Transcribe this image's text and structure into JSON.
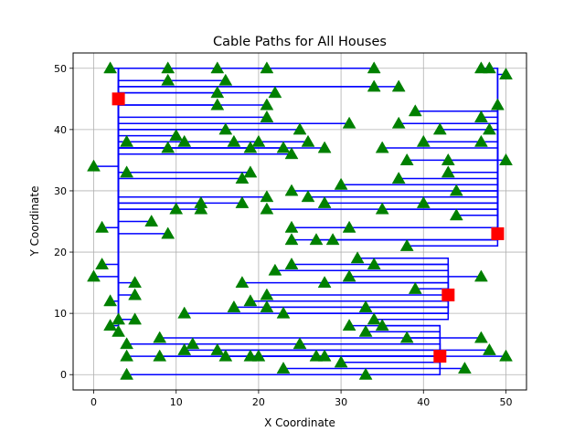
{
  "chart_data": {
    "type": "scatter",
    "title": "Cable Paths for All Houses",
    "xlabel": "X Coordinate",
    "ylabel": "Y Coordinate",
    "xlim": [
      -2.5,
      52.5
    ],
    "ylim": [
      -2.5,
      52.5
    ],
    "xticks": [
      0,
      10,
      20,
      30,
      40,
      50
    ],
    "yticks": [
      0,
      10,
      20,
      30,
      40,
      50
    ],
    "grid": true,
    "colors": {
      "houses": "#008000",
      "batteries": "#ff0000",
      "cables": "#0000ff",
      "grid": "#b0b0b0"
    },
    "batteries": [
      {
        "x": 3,
        "y": 45
      },
      {
        "x": 49,
        "y": 23
      },
      {
        "x": 43,
        "y": 13
      },
      {
        "x": 42,
        "y": 3
      }
    ],
    "houses": [
      {
        "x": 2,
        "y": 50
      },
      {
        "x": 9,
        "y": 50
      },
      {
        "x": 15,
        "y": 50
      },
      {
        "x": 21,
        "y": 50
      },
      {
        "x": 34,
        "y": 50
      },
      {
        "x": 47,
        "y": 50
      },
      {
        "x": 48,
        "y": 50
      },
      {
        "x": 50,
        "y": 49
      },
      {
        "x": 9,
        "y": 48
      },
      {
        "x": 16,
        "y": 48
      },
      {
        "x": 34,
        "y": 47
      },
      {
        "x": 37,
        "y": 47
      },
      {
        "x": 15,
        "y": 46
      },
      {
        "x": 22,
        "y": 46
      },
      {
        "x": 15,
        "y": 44
      },
      {
        "x": 21,
        "y": 44
      },
      {
        "x": 49,
        "y": 44
      },
      {
        "x": 39,
        "y": 43
      },
      {
        "x": 21,
        "y": 42
      },
      {
        "x": 47,
        "y": 42
      },
      {
        "x": 31,
        "y": 41
      },
      {
        "x": 37,
        "y": 41
      },
      {
        "x": 16,
        "y": 40
      },
      {
        "x": 25,
        "y": 40
      },
      {
        "x": 10,
        "y": 39
      },
      {
        "x": 42,
        "y": 40
      },
      {
        "x": 48,
        "y": 40
      },
      {
        "x": 4,
        "y": 38
      },
      {
        "x": 11,
        "y": 38
      },
      {
        "x": 17,
        "y": 38
      },
      {
        "x": 20,
        "y": 38
      },
      {
        "x": 26,
        "y": 38
      },
      {
        "x": 40,
        "y": 38
      },
      {
        "x": 47,
        "y": 38
      },
      {
        "x": 9,
        "y": 37
      },
      {
        "x": 19,
        "y": 37
      },
      {
        "x": 23,
        "y": 37
      },
      {
        "x": 28,
        "y": 37
      },
      {
        "x": 35,
        "y": 37
      },
      {
        "x": 24,
        "y": 36
      },
      {
        "x": 38,
        "y": 35
      },
      {
        "x": 43,
        "y": 35
      },
      {
        "x": 50,
        "y": 35
      },
      {
        "x": 0,
        "y": 34
      },
      {
        "x": 4,
        "y": 33
      },
      {
        "x": 19,
        "y": 33
      },
      {
        "x": 18,
        "y": 32
      },
      {
        "x": 43,
        "y": 33
      },
      {
        "x": 37,
        "y": 32
      },
      {
        "x": 30,
        "y": 31
      },
      {
        "x": 24,
        "y": 30
      },
      {
        "x": 26,
        "y": 29
      },
      {
        "x": 44,
        "y": 30
      },
      {
        "x": 21,
        "y": 29
      },
      {
        "x": 18,
        "y": 28
      },
      {
        "x": 28,
        "y": 28
      },
      {
        "x": 40,
        "y": 28
      },
      {
        "x": 13,
        "y": 28
      },
      {
        "x": 13,
        "y": 27
      },
      {
        "x": 10,
        "y": 27
      },
      {
        "x": 21,
        "y": 27
      },
      {
        "x": 35,
        "y": 27
      },
      {
        "x": 44,
        "y": 26
      },
      {
        "x": 7,
        "y": 25
      },
      {
        "x": 1,
        "y": 24
      },
      {
        "x": 9,
        "y": 23
      },
      {
        "x": 24,
        "y": 24
      },
      {
        "x": 31,
        "y": 24
      },
      {
        "x": 24,
        "y": 22
      },
      {
        "x": 27,
        "y": 22
      },
      {
        "x": 29,
        "y": 22
      },
      {
        "x": 38,
        "y": 21
      },
      {
        "x": 32,
        "y": 19
      },
      {
        "x": 1,
        "y": 18
      },
      {
        "x": 24,
        "y": 18
      },
      {
        "x": 34,
        "y": 18
      },
      {
        "x": 22,
        "y": 17
      },
      {
        "x": 0,
        "y": 16
      },
      {
        "x": 31,
        "y": 16
      },
      {
        "x": 47,
        "y": 16
      },
      {
        "x": 5,
        "y": 15
      },
      {
        "x": 18,
        "y": 15
      },
      {
        "x": 28,
        "y": 15
      },
      {
        "x": 5,
        "y": 13
      },
      {
        "x": 39,
        "y": 14
      },
      {
        "x": 21,
        "y": 13
      },
      {
        "x": 2,
        "y": 12
      },
      {
        "x": 19,
        "y": 12
      },
      {
        "x": 17,
        "y": 11
      },
      {
        "x": 21,
        "y": 11
      },
      {
        "x": 33,
        "y": 11
      },
      {
        "x": 11,
        "y": 10
      },
      {
        "x": 23,
        "y": 10
      },
      {
        "x": 3,
        "y": 9
      },
      {
        "x": 5,
        "y": 9
      },
      {
        "x": 34,
        "y": 9
      },
      {
        "x": 2,
        "y": 8
      },
      {
        "x": 31,
        "y": 8
      },
      {
        "x": 35,
        "y": 8
      },
      {
        "x": 3,
        "y": 7
      },
      {
        "x": 33,
        "y": 7
      },
      {
        "x": 8,
        "y": 6
      },
      {
        "x": 38,
        "y": 6
      },
      {
        "x": 47,
        "y": 6
      },
      {
        "x": 4,
        "y": 5
      },
      {
        "x": 12,
        "y": 5
      },
      {
        "x": 25,
        "y": 5
      },
      {
        "x": 11,
        "y": 4
      },
      {
        "x": 15,
        "y": 4
      },
      {
        "x": 48,
        "y": 4
      },
      {
        "x": 4,
        "y": 3
      },
      {
        "x": 8,
        "y": 3
      },
      {
        "x": 16,
        "y": 3
      },
      {
        "x": 19,
        "y": 3
      },
      {
        "x": 20,
        "y": 3
      },
      {
        "x": 27,
        "y": 3
      },
      {
        "x": 28,
        "y": 3
      },
      {
        "x": 50,
        "y": 3
      },
      {
        "x": 30,
        "y": 2
      },
      {
        "x": 23,
        "y": 1
      },
      {
        "x": 45,
        "y": 1
      },
      {
        "x": 4,
        "y": 0
      },
      {
        "x": 33,
        "y": 0
      }
    ]
  }
}
